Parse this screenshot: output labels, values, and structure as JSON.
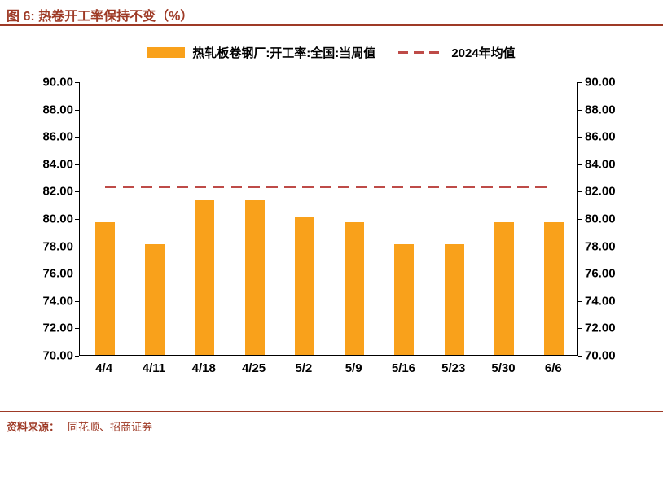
{
  "title": "图 6:  热卷开工率保持不变（%）",
  "legend": [
    {
      "label": "热轧板卷钢厂:开工率:全国:当周值",
      "swatch": "orange-bar"
    },
    {
      "label": "2024年均值",
      "swatch": "red-dashed-line"
    }
  ],
  "footer": {
    "prefix": "资料来源：",
    "source": "同花顺、招商证券"
  },
  "colors": {
    "accent": "#9E3A26",
    "bar": "#F9A11B",
    "dashed_line": "#BE4B48",
    "axis": "#000000"
  },
  "chart_data": {
    "type": "bar",
    "title": "热卷开工率保持不变（%）",
    "categories": [
      "4/4",
      "4/11",
      "4/18",
      "4/25",
      "5/2",
      "5/9",
      "5/16",
      "5/23",
      "5/30",
      "6/6"
    ],
    "values": [
      79.7,
      78.1,
      81.3,
      81.3,
      80.1,
      79.7,
      78.1,
      78.1,
      79.7,
      79.7
    ],
    "series_name": "热轧板卷钢厂:开工率:全国:当周值",
    "reference_line": {
      "label": "2024年均值",
      "value": 82.3
    },
    "xlabel": "",
    "ylabel": "",
    "ylim": [
      70,
      90
    ],
    "ytick_step": 2,
    "yticks": [
      "90.00",
      "88.00",
      "86.00",
      "84.00",
      "82.00",
      "80.00",
      "78.00",
      "76.00",
      "74.00",
      "72.00",
      "70.00"
    ],
    "grid": false,
    "legend_position": "top",
    "dual_y_axis": true
  }
}
